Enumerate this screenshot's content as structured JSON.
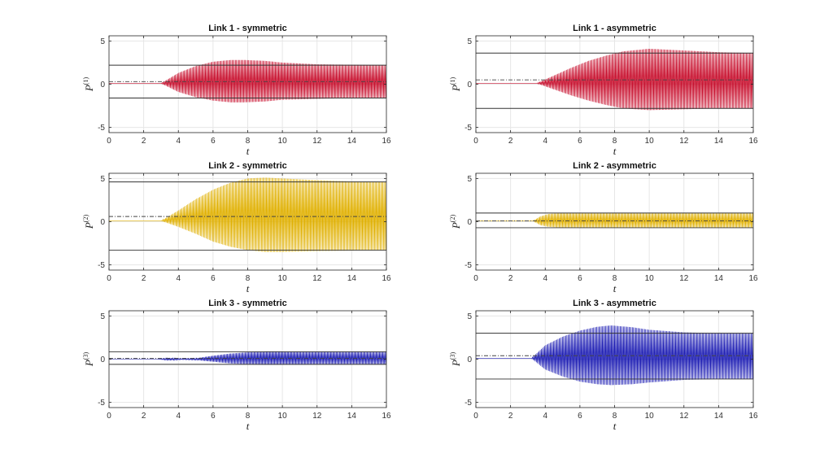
{
  "chart_data": [
    {
      "type": "line",
      "title": "Link 1 - symmetric",
      "xlabel": "t",
      "ylabel_base": "P",
      "ylabel_sup": "(1)",
      "xlim": [
        0,
        16
      ],
      "ylim": [
        -5.6,
        5.6
      ],
      "xticks": [
        0,
        2,
        4,
        6,
        8,
        10,
        12,
        14,
        16
      ],
      "yticks": [
        -5,
        0,
        5
      ],
      "grid": true,
      "color": "#c8102e",
      "envelope": {
        "onset": 3.0,
        "baseline": 0.1,
        "t": [
          3.0,
          4.0,
          5.0,
          6.0,
          7.0,
          7.8,
          9.0,
          10.0,
          12.0,
          14.0,
          16.0
        ],
        "upper": [
          0.1,
          1.3,
          2.1,
          2.6,
          2.8,
          2.8,
          2.7,
          2.5,
          2.3,
          2.25,
          2.2
        ],
        "lower": [
          0.1,
          -0.9,
          -1.5,
          -1.9,
          -2.1,
          -2.1,
          -2.0,
          -1.8,
          -1.7,
          -1.6,
          -1.6
        ]
      },
      "reference_lines": {
        "upper": 2.2,
        "lower": -1.6,
        "mean": 0.3
      }
    },
    {
      "type": "line",
      "title": "Link 1 - asymmetric",
      "xlabel": "t",
      "ylabel_base": "P",
      "ylabel_sup": "(1)",
      "xlim": [
        0,
        16
      ],
      "ylim": [
        -5.6,
        5.6
      ],
      "xticks": [
        0,
        2,
        4,
        6,
        8,
        10,
        12,
        14,
        16
      ],
      "yticks": [
        -5,
        0,
        5
      ],
      "grid": true,
      "color": "#c8102e",
      "envelope": {
        "onset": 3.5,
        "baseline": 0.1,
        "t": [
          3.5,
          4.5,
          5.5,
          6.5,
          7.5,
          8.5,
          10.0,
          11.0,
          12.0,
          14.0,
          16.0
        ],
        "upper": [
          0.1,
          1.0,
          1.9,
          2.7,
          3.3,
          3.8,
          4.1,
          4.0,
          3.9,
          3.7,
          3.6
        ],
        "lower": [
          0.1,
          -0.6,
          -1.3,
          -1.9,
          -2.4,
          -2.8,
          -3.0,
          -2.95,
          -2.9,
          -2.8,
          -2.8
        ]
      },
      "reference_lines": {
        "upper": 3.6,
        "lower": -2.8,
        "mean": 0.5
      }
    },
    {
      "type": "line",
      "title": "Link 2 - symmetric",
      "xlabel": "t",
      "ylabel_base": "P",
      "ylabel_sup": "(2)",
      "xlim": [
        0,
        16
      ],
      "ylim": [
        -5.6,
        5.6
      ],
      "xticks": [
        0,
        2,
        4,
        6,
        8,
        10,
        12,
        14,
        16
      ],
      "yticks": [
        -5,
        0,
        5
      ],
      "grid": true,
      "color": "#e0b000",
      "envelope": {
        "onset": 3.0,
        "baseline": 0.1,
        "t": [
          3.0,
          4.0,
          5.0,
          6.0,
          7.0,
          8.0,
          9.0,
          10.0,
          12.0,
          14.0,
          16.0
        ],
        "upper": [
          0.1,
          1.3,
          2.6,
          3.7,
          4.5,
          5.0,
          5.1,
          5.0,
          4.8,
          4.65,
          4.6
        ],
        "lower": [
          0.1,
          -0.6,
          -1.4,
          -2.3,
          -2.9,
          -3.3,
          -3.5,
          -3.5,
          -3.4,
          -3.35,
          -3.3
        ]
      },
      "reference_lines": {
        "upper": 4.6,
        "lower": -3.3,
        "mean": 0.6
      }
    },
    {
      "type": "line",
      "title": "Link 2 - asymmetric",
      "xlabel": "t",
      "ylabel_base": "P",
      "ylabel_sup": "(2)",
      "xlim": [
        0,
        16
      ],
      "ylim": [
        -5.6,
        5.6
      ],
      "xticks": [
        0,
        2,
        4,
        6,
        8,
        10,
        12,
        14,
        16
      ],
      "yticks": [
        -5,
        0,
        5
      ],
      "grid": true,
      "color": "#e0b000",
      "envelope": {
        "onset": 3.3,
        "baseline": 0.1,
        "t": [
          3.3,
          3.7,
          4.2,
          5.0,
          8.0,
          12.0,
          16.0
        ],
        "upper": [
          0.1,
          0.6,
          0.9,
          1.0,
          1.0,
          1.0,
          1.0
        ],
        "lower": [
          0.1,
          -0.4,
          -0.6,
          -0.7,
          -0.7,
          -0.7,
          -0.7
        ]
      },
      "reference_lines": {
        "upper": 1.0,
        "lower": -0.7,
        "mean": 0.1
      }
    },
    {
      "type": "line",
      "title": "Link 3 - symmetric",
      "xlabel": "t",
      "ylabel_base": "P",
      "ylabel_sup": "(3)",
      "xlim": [
        0,
        16
      ],
      "ylim": [
        -5.6,
        5.6
      ],
      "xticks": [
        0,
        2,
        4,
        6,
        8,
        10,
        12,
        14,
        16
      ],
      "yticks": [
        -5,
        0,
        5
      ],
      "grid": true,
      "color": "#1f1fb4",
      "envelope": {
        "onset": 2.8,
        "baseline": 0.0,
        "t": [
          2.8,
          3.5,
          4.2,
          5.0,
          6.0,
          7.0,
          8.0,
          9.0,
          10.0,
          12.0,
          16.0
        ],
        "upper": [
          0.0,
          0.15,
          0.05,
          0.1,
          0.4,
          0.65,
          0.8,
          0.9,
          0.9,
          0.85,
          0.85
        ],
        "lower": [
          0.0,
          -0.15,
          -0.05,
          -0.1,
          -0.3,
          -0.5,
          -0.6,
          -0.65,
          -0.65,
          -0.6,
          -0.6
        ]
      },
      "reference_lines": {
        "upper": 0.85,
        "lower": -0.6,
        "mean": 0.1
      }
    },
    {
      "type": "line",
      "title": "Link 3 - asymmetric",
      "xlabel": "t",
      "ylabel_base": "P",
      "ylabel_sup": "(3)",
      "xlim": [
        0,
        16
      ],
      "ylim": [
        -5.6,
        5.6
      ],
      "xticks": [
        0,
        2,
        4,
        6,
        8,
        10,
        12,
        14,
        16
      ],
      "yticks": [
        -5,
        0,
        5
      ],
      "grid": true,
      "color": "#1f1fb4",
      "envelope": {
        "onset": 3.2,
        "baseline": 0.1,
        "t": [
          3.2,
          4.0,
          5.0,
          6.0,
          7.0,
          7.8,
          9.0,
          10.0,
          12.0,
          14.0,
          16.0
        ],
        "upper": [
          0.1,
          1.6,
          2.6,
          3.3,
          3.75,
          3.9,
          3.7,
          3.4,
          3.1,
          3.0,
          3.0
        ],
        "lower": [
          0.1,
          -1.2,
          -2.0,
          -2.6,
          -2.9,
          -3.0,
          -2.9,
          -2.7,
          -2.4,
          -2.3,
          -2.3
        ]
      },
      "reference_lines": {
        "upper": 3.0,
        "lower": -2.3,
        "mean": 0.4
      }
    }
  ]
}
